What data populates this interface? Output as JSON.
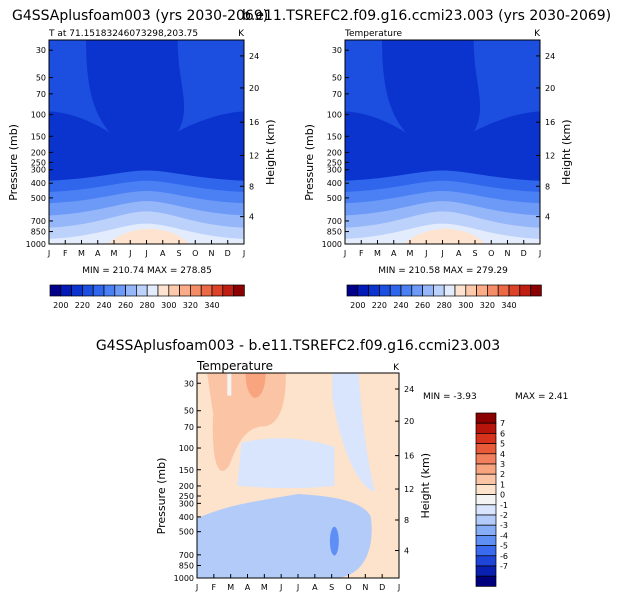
{
  "titles": {
    "left": "G4SSAplusfoam003 (yrs 2030-2069)",
    "right": "b.e11.TSREFC2.f09.g16.ccmi23.003 (yrs 2030-2069)",
    "bottom": "G4SSAplusfoam003 - b.e11.TSREFC2.f09.g16.ccmi23.003"
  },
  "months": [
    "J",
    "F",
    "M",
    "A",
    "M",
    "J",
    "J",
    "A",
    "S",
    "O",
    "N",
    "D",
    "J"
  ],
  "colors": {
    "temp": [
      "#02008a",
      "#021ab8",
      "#0b34cf",
      "#1c4ee0",
      "#2f66ec",
      "#4a80f4",
      "#6e9af7",
      "#95b6f8",
      "#bdd2fb",
      "#e3ecfc",
      "#fde3d0",
      "#fcc9ab",
      "#f9ac87",
      "#f48d67",
      "#ec6946",
      "#dc4228",
      "#bf1e12",
      "#8b0000"
    ],
    "diff": [
      "#00007f",
      "#0a20b0",
      "#1e45d8",
      "#3a6aee",
      "#5f8ef5",
      "#88adf7",
      "#b2cbf9",
      "#d8e5fc",
      "#f4f4f4",
      "#fde2cc",
      "#fbc5a5",
      "#f8a47f",
      "#f2805c",
      "#e85a38",
      "#d6321c",
      "#b7150c",
      "#8a0000"
    ]
  },
  "chart_data": [
    {
      "type": "contour",
      "title": "G4SSAplusfoam003 (yrs 2030-2069)",
      "left_label": "T at 71.15183246073298,203.75",
      "right_label": "K",
      "xlabel": "",
      "ylabel": "Pressure (mb)",
      "y2label": "Height (km)",
      "x_ticks": [
        "J",
        "F",
        "M",
        "A",
        "M",
        "J",
        "J",
        "A",
        "S",
        "O",
        "N",
        "D",
        "J"
      ],
      "pressure_ticks": [
        30,
        50,
        70,
        100,
        150,
        200,
        250,
        300,
        400,
        500,
        700,
        850,
        1000
      ],
      "height_ticks": [
        24,
        20,
        16,
        12,
        8,
        4
      ],
      "stats": "MIN = 210.74  MAX = 278.85",
      "min": 210.74,
      "max": 278.85,
      "colorbar_levels": [
        200,
        220,
        240,
        260,
        280,
        300,
        320,
        340
      ]
    },
    {
      "type": "contour",
      "title": "b.e11.TSREFC2.f09.g16.ccmi23.003 (yrs 2030-2069)",
      "left_label": "Temperature",
      "right_label": "K",
      "xlabel": "",
      "ylabel": "Pressure (mb)",
      "y2label": "Height (km)",
      "x_ticks": [
        "J",
        "F",
        "M",
        "A",
        "M",
        "J",
        "J",
        "A",
        "S",
        "O",
        "N",
        "D",
        "J"
      ],
      "pressure_ticks": [
        30,
        50,
        70,
        100,
        150,
        200,
        250,
        300,
        400,
        500,
        700,
        850,
        1000
      ],
      "height_ticks": [
        24,
        20,
        16,
        12,
        8,
        4
      ],
      "stats": "MIN = 210.58  MAX = 279.29",
      "min": 210.58,
      "max": 279.29,
      "colorbar_levels": [
        200,
        220,
        240,
        260,
        280,
        300,
        320,
        340
      ]
    },
    {
      "type": "contour",
      "title": "G4SSAplusfoam003 - b.e11.TSREFC2.f09.g16.ccmi23.003",
      "left_label": "Temperature",
      "right_label": "K",
      "xlabel": "",
      "ylabel": "Pressure (mb)",
      "y2label": "Height (km)",
      "x_ticks": [
        "J",
        "F",
        "M",
        "A",
        "M",
        "J",
        "J",
        "A",
        "S",
        "O",
        "N",
        "D",
        "J"
      ],
      "pressure_ticks": [
        30,
        50,
        70,
        100,
        150,
        200,
        250,
        300,
        400,
        500,
        700,
        850,
        1000
      ],
      "height_ticks": [
        24,
        20,
        16,
        12,
        8,
        4
      ],
      "stats_min": "MIN =   -3.93",
      "stats_max": "MAX =     2.41",
      "min": -3.93,
      "max": 2.41,
      "colorbar_levels": [
        7,
        6,
        5,
        4,
        3,
        2,
        1,
        0,
        -1,
        -2,
        -3,
        -4,
        -5,
        -6,
        -7
      ]
    }
  ]
}
